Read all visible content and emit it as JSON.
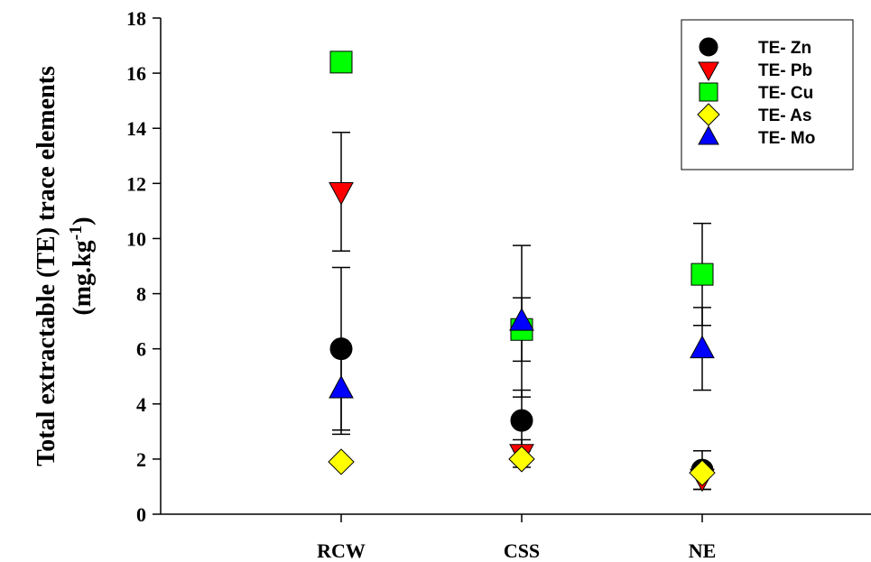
{
  "chart_data": {
    "type": "scatter",
    "y_label": "Total extractable (TE) trace elements",
    "y_unit": {
      "base": "(mg.kg",
      "sup": "-1",
      "end": ")"
    },
    "categories": [
      "RCW",
      "CSS",
      "NE"
    ],
    "series": [
      {
        "name": "TE- Zn",
        "color": "#000000",
        "marker": "circle",
        "values": [
          6.0,
          3.4,
          1.6
        ],
        "errors": [
          2.95,
          1.1,
          0.7
        ]
      },
      {
        "name": "TE- Pb",
        "color": "#ff0000",
        "marker": "triangle-down",
        "values": [
          11.7,
          2.2,
          1.3
        ],
        "errors": [
          2.15,
          0.5,
          0.4
        ]
      },
      {
        "name": "TE- Cu",
        "color": "#00ff00",
        "marker": "square",
        "values": [
          16.4,
          6.7,
          8.7
        ],
        "errors": [
          null,
          1.15,
          1.85
        ]
      },
      {
        "name": "TE- As",
        "color": "#ffff00",
        "marker": "diamond",
        "values": [
          1.9,
          2.0,
          1.5
        ],
        "errors": [
          0.1,
          0.1,
          0.1
        ]
      },
      {
        "name": "TE- Mo",
        "color": "#0000ff",
        "marker": "triangle-up",
        "values": [
          4.55,
          7.0,
          6.0
        ],
        "errors": [
          1.65,
          2.75,
          1.5
        ]
      }
    ],
    "ylim": [
      0,
      18
    ],
    "yticks": [
      0,
      2,
      4,
      6,
      8,
      10,
      12,
      14,
      16,
      18
    ],
    "legend": "top-right"
  }
}
